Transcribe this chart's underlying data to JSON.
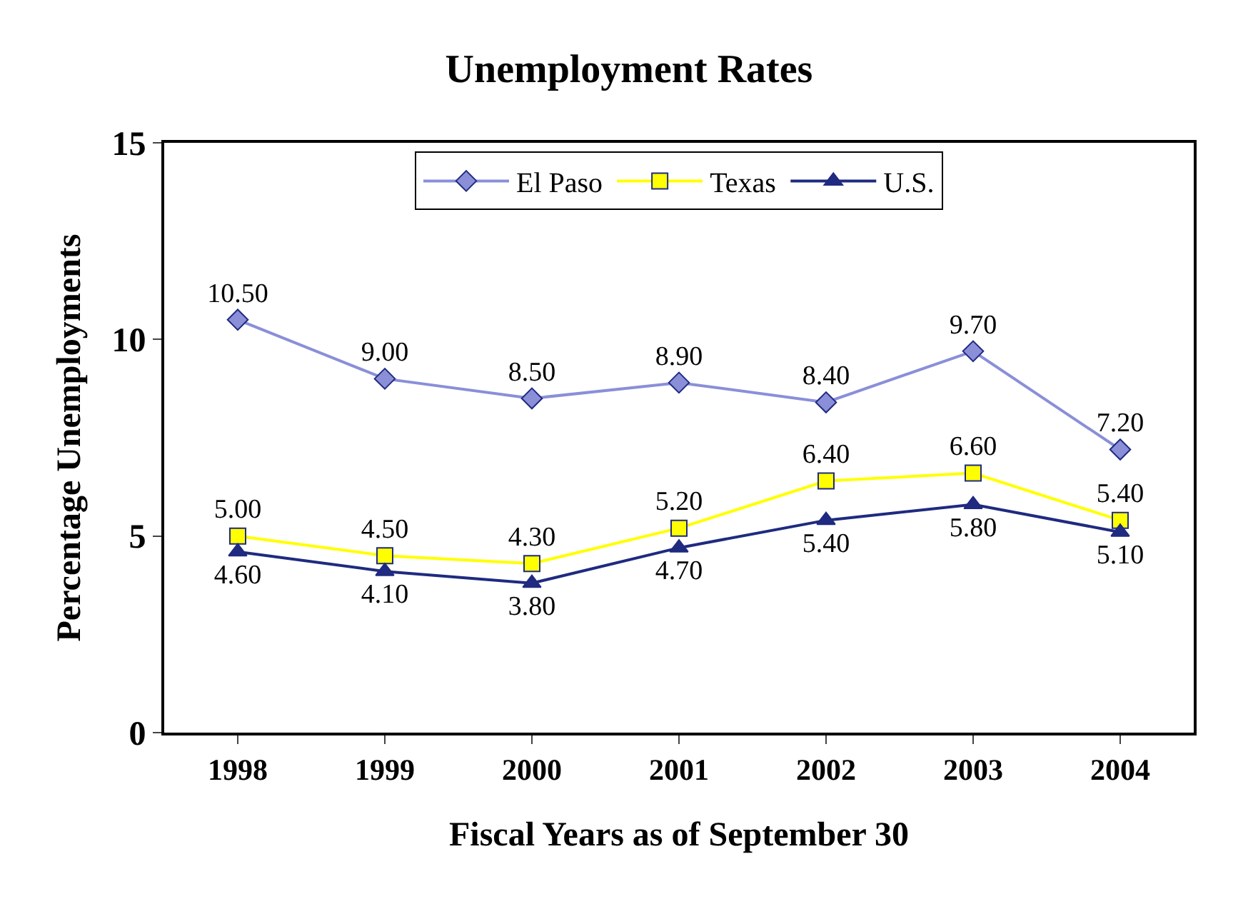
{
  "chart_data": {
    "type": "line",
    "title": "Unemployment Rates",
    "xlabel": "Fiscal Years as of September 30",
    "ylabel": "Percentage Unemployments",
    "categories": [
      "1998",
      "1999",
      "2000",
      "2001",
      "2002",
      "2003",
      "2004"
    ],
    "series": [
      {
        "name": "El Paso",
        "color": "#8a8fd8",
        "marker": "diamond",
        "values": [
          10.5,
          9.0,
          8.5,
          8.9,
          8.4,
          9.7,
          7.2
        ],
        "value_labels": [
          "10.50",
          "9.00",
          "8.50",
          "8.90",
          "8.40",
          "9.70",
          "7.20"
        ]
      },
      {
        "name": "Texas",
        "color": "#ffff00",
        "marker": "square",
        "values": [
          5.0,
          4.5,
          4.3,
          5.2,
          6.4,
          6.6,
          5.4
        ],
        "value_labels": [
          "5.00",
          "4.50",
          "4.30",
          "5.20",
          "6.40",
          "6.60",
          "5.40"
        ]
      },
      {
        "name": "U.S.",
        "color": "#1f2a80",
        "marker": "triangle",
        "values": [
          4.6,
          4.1,
          3.8,
          4.7,
          5.4,
          5.8,
          5.1
        ],
        "value_labels": [
          "4.60",
          "4.10",
          "3.80",
          "4.70",
          "5.40",
          "5.80",
          "5.10"
        ]
      }
    ],
    "ylim": [
      0,
      15
    ],
    "yticks": [
      0,
      5,
      10,
      15
    ],
    "legend": "top"
  }
}
